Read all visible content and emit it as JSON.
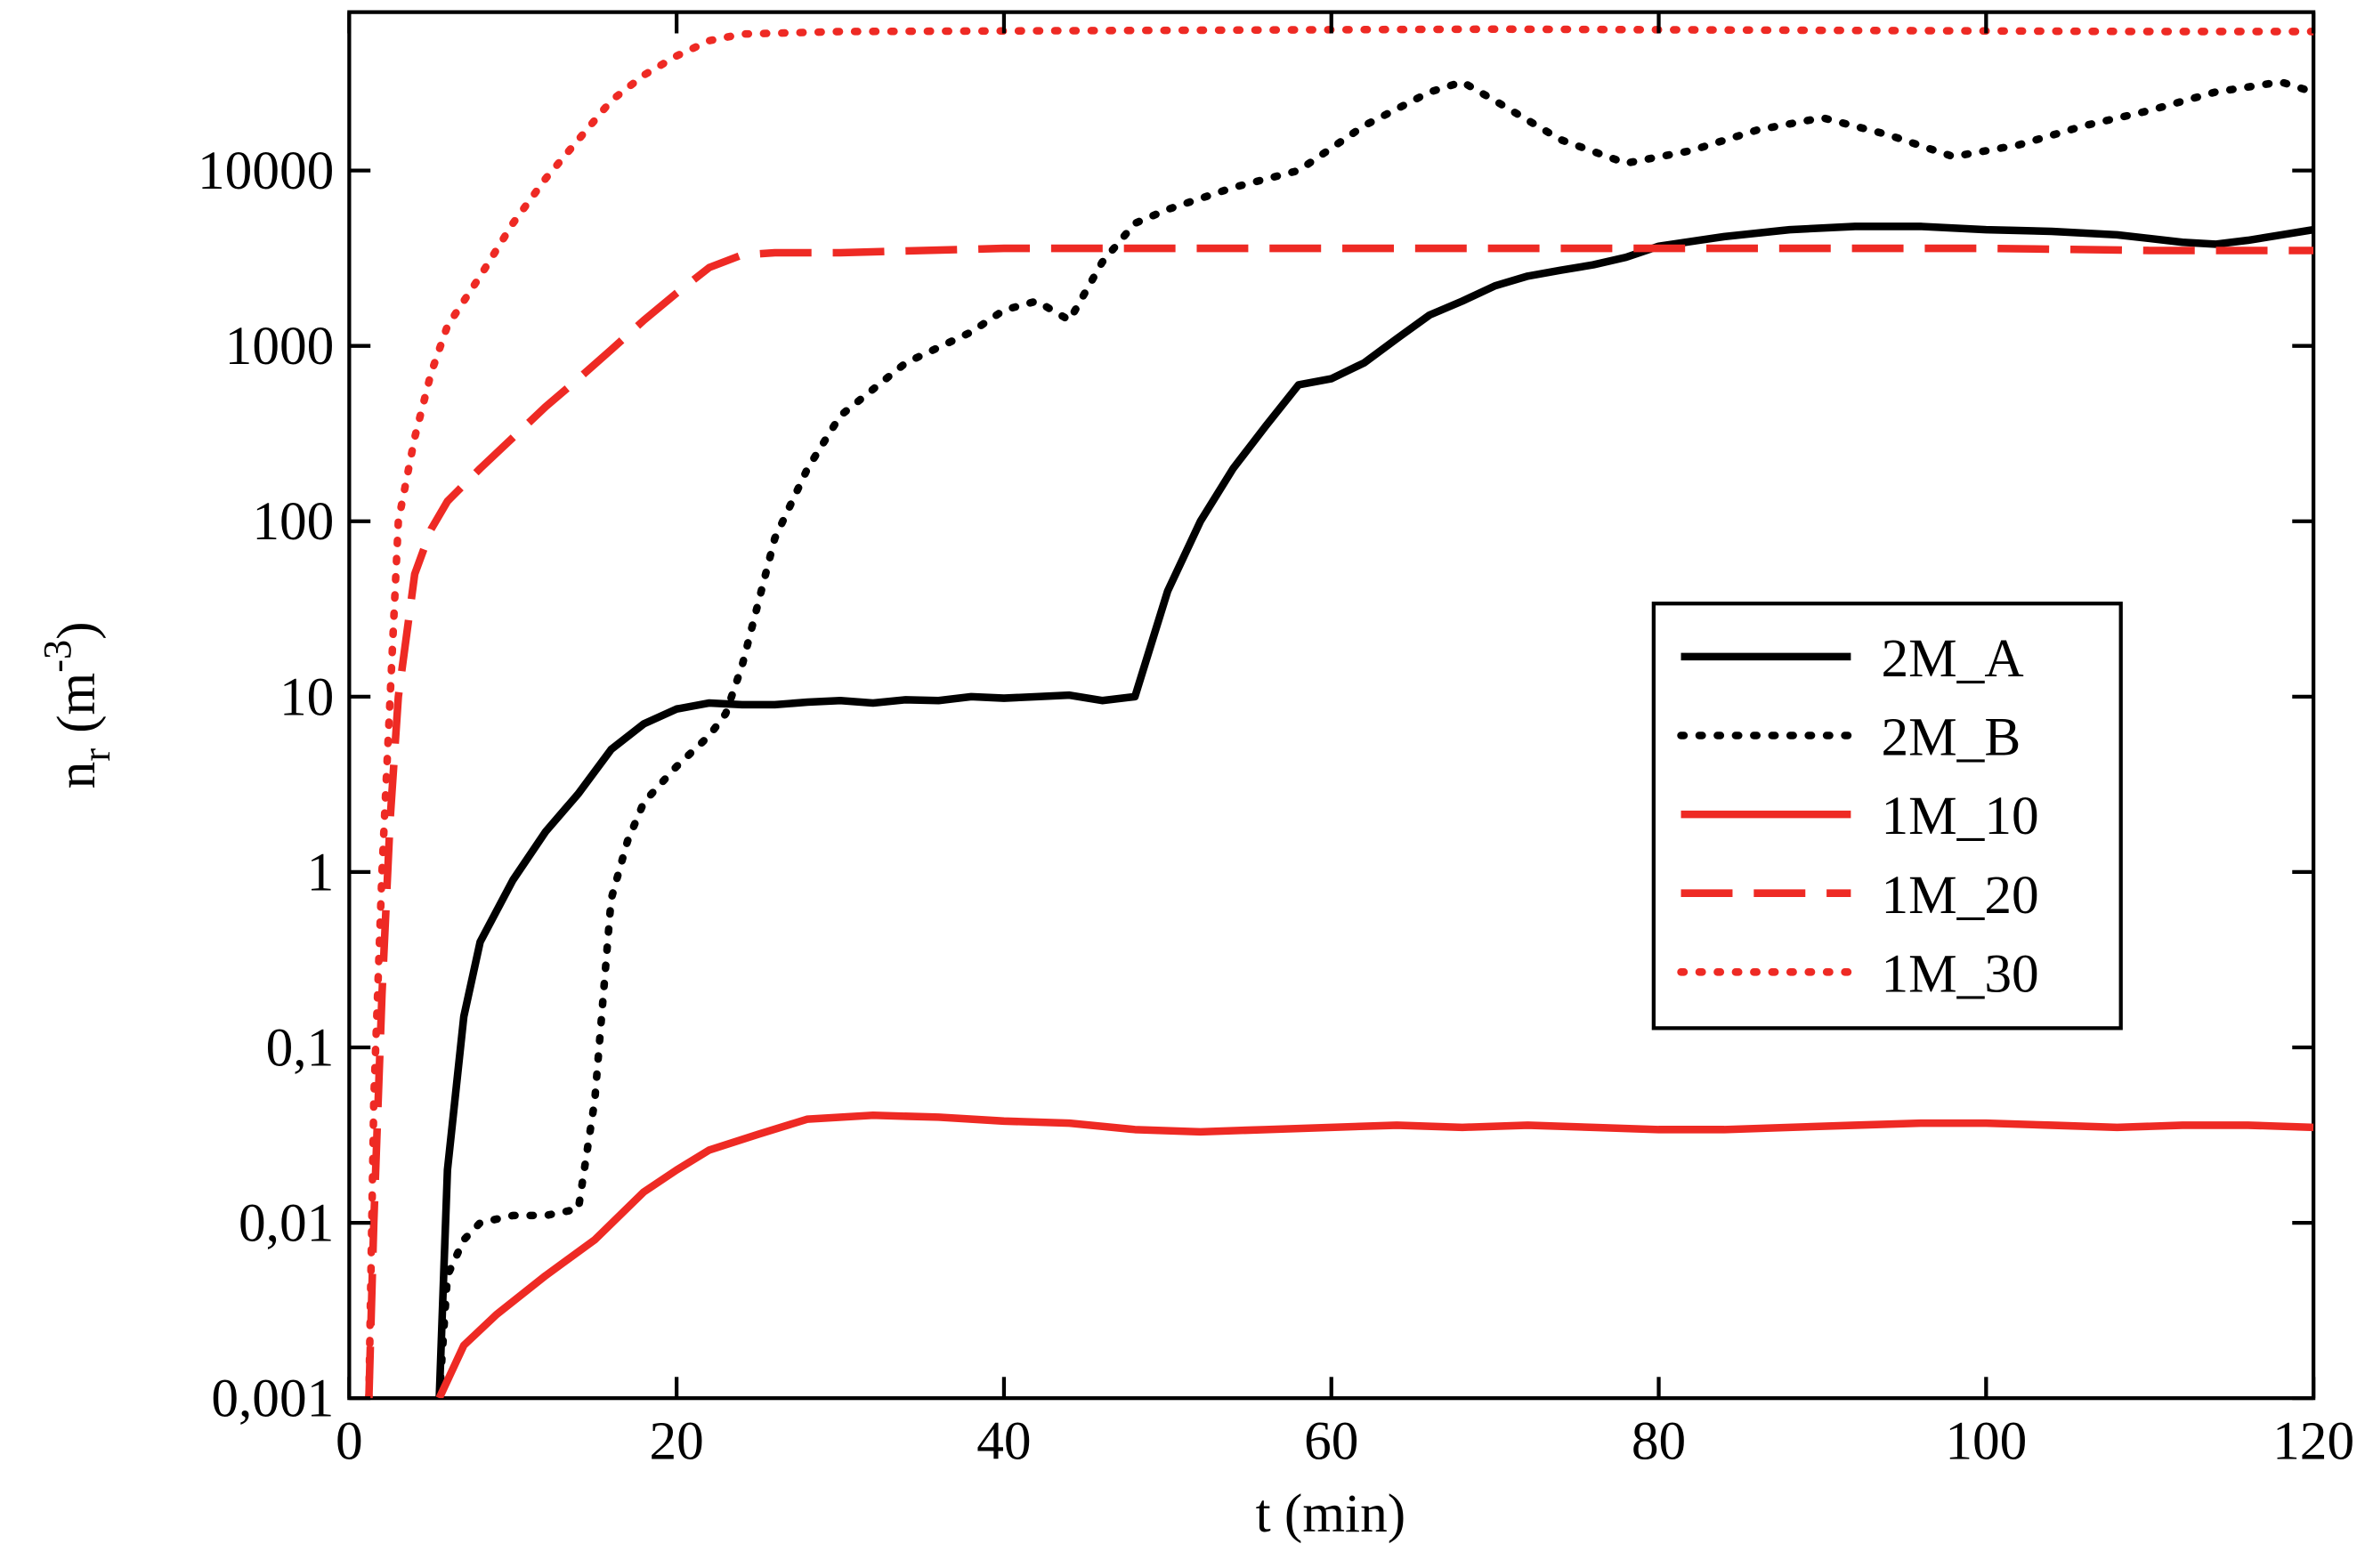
{
  "chart_data": {
    "type": "line",
    "xlabel": "t (min)",
    "ylabel": {
      "base": "n",
      "sub": "r",
      "open": "(m",
      "sup": "-3",
      "close": ")"
    },
    "xlim": [
      0,
      120
    ],
    "ylim": [
      0.001,
      80000
    ],
    "log_y": true,
    "xticks": [
      0,
      20,
      40,
      60,
      80,
      100,
      120
    ],
    "yticks": [
      {
        "value": 0.001,
        "label": "0,001"
      },
      {
        "value": 0.01,
        "label": "0,01"
      },
      {
        "value": 0.1,
        "label": "0,1"
      },
      1,
      10,
      100,
      1000,
      10000
    ],
    "legend": "right",
    "series": [
      {
        "name": "2M_A",
        "color": "#000000",
        "style": "solid",
        "x": [
          5.5,
          6,
          7,
          8,
          10,
          12,
          14,
          16,
          18,
          20,
          22,
          24,
          26,
          28,
          30,
          32,
          34,
          36,
          38,
          40,
          42,
          44,
          46,
          48,
          50,
          52,
          54,
          56,
          58,
          60,
          62,
          64,
          66,
          68,
          70,
          72,
          74,
          76,
          78,
          80,
          84,
          88,
          92,
          96,
          100,
          104,
          108,
          112,
          114,
          116,
          120
        ],
        "values": [
          0.001,
          0.02,
          0.15,
          0.4,
          0.9,
          1.7,
          2.8,
          5,
          7,
          8.5,
          9.2,
          9,
          9,
          9.3,
          9.5,
          9.2,
          9.6,
          9.5,
          10,
          9.8,
          10,
          10.2,
          9.5,
          10,
          40,
          100,
          200,
          350,
          600,
          650,
          800,
          1100,
          1500,
          1800,
          2200,
          2500,
          2700,
          2900,
          3200,
          3700,
          4200,
          4600,
          4800,
          4800,
          4600,
          4500,
          4300,
          3900,
          3800,
          4000,
          4600
        ]
      },
      {
        "name": "2M_B",
        "color": "#000000",
        "style": "dotted",
        "x": [
          5.5,
          6,
          7,
          8,
          10,
          12,
          14,
          15,
          16,
          17,
          18,
          20,
          22,
          23,
          24,
          26,
          28,
          30,
          34,
          38,
          40,
          42,
          44,
          46,
          48,
          50,
          54,
          58,
          62,
          66,
          68,
          70,
          74,
          78,
          82,
          86,
          90,
          94,
          98,
          102,
          106,
          110,
          114,
          118,
          120
        ],
        "values": [
          0.001,
          0.005,
          0.008,
          0.01,
          0.011,
          0.011,
          0.012,
          0.05,
          0.7,
          1.5,
          2.5,
          4,
          6,
          8,
          15,
          80,
          200,
          400,
          800,
          1200,
          1600,
          1800,
          1400,
          3000,
          5000,
          6000,
          8000,
          10000,
          18000,
          28000,
          32000,
          25000,
          15000,
          11000,
          13000,
          17000,
          20000,
          16000,
          12000,
          14000,
          18000,
          22000,
          28000,
          32000,
          28000
        ]
      },
      {
        "name": "1M_10",
        "color": "#ee2a24",
        "style": "solid",
        "x": [
          5.5,
          7,
          9,
          12,
          15,
          18,
          20,
          22,
          25,
          28,
          32,
          36,
          40,
          44,
          48,
          52,
          56,
          60,
          64,
          68,
          72,
          76,
          80,
          84,
          88,
          92,
          96,
          100,
          104,
          108,
          112,
          116,
          120
        ],
        "values": [
          0.001,
          0.002,
          0.003,
          0.005,
          0.008,
          0.015,
          0.02,
          0.026,
          0.032,
          0.039,
          0.041,
          0.04,
          0.038,
          0.037,
          0.034,
          0.033,
          0.034,
          0.035,
          0.036,
          0.035,
          0.036,
          0.035,
          0.034,
          0.034,
          0.035,
          0.036,
          0.037,
          0.037,
          0.036,
          0.035,
          0.036,
          0.036,
          0.035
        ]
      },
      {
        "name": "1M_20",
        "color": "#ee2a24",
        "style": "dashed",
        "x": [
          1.2,
          1.5,
          2,
          2.5,
          3,
          4,
          5,
          6,
          8,
          10,
          12,
          14,
          16,
          18,
          20,
          22,
          24,
          26,
          30,
          40,
          50,
          60,
          70,
          80,
          90,
          100,
          110,
          120
        ],
        "values": [
          0.001,
          0.01,
          0.2,
          2,
          10,
          50,
          90,
          130,
          200,
          300,
          450,
          650,
          950,
          1400,
          2000,
          2800,
          3300,
          3400,
          3400,
          3600,
          3600,
          3600,
          3600,
          3600,
          3600,
          3600,
          3500,
          3500
        ]
      },
      {
        "name": "1M_30",
        "color": "#ee2a24",
        "style": "dotted",
        "x": [
          1.2,
          1.5,
          2,
          2.5,
          3,
          4,
          5,
          6,
          8,
          10,
          12,
          14,
          16,
          18,
          20,
          22,
          24,
          30,
          50,
          70,
          90,
          110,
          120
        ],
        "values": [
          0.001,
          0.05,
          1,
          10,
          100,
          300,
          700,
          1300,
          2500,
          5000,
          9000,
          15000,
          25000,
          35000,
          45000,
          55000,
          60000,
          62000,
          63000,
          64000,
          63000,
          62000,
          62000
        ]
      }
    ]
  }
}
